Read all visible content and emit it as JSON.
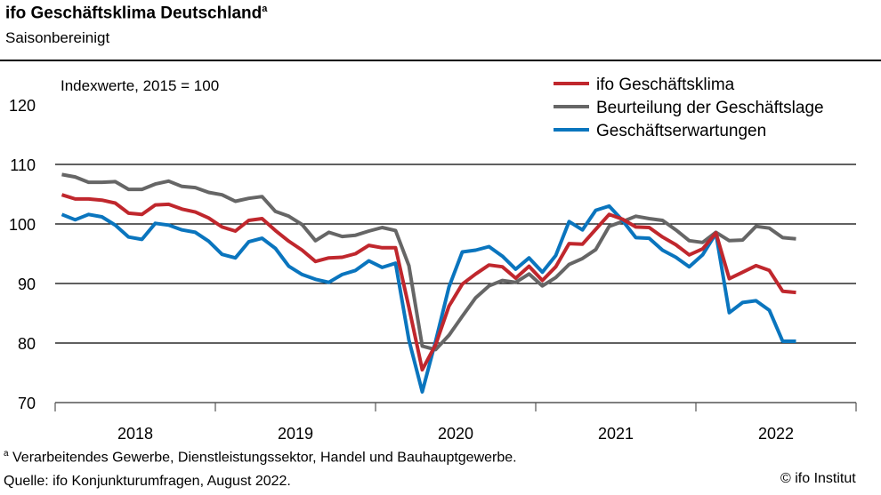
{
  "header": {
    "title": "ifo Geschäftsklima Deutschland",
    "title_sup": "a",
    "subtitle": "Saisonbereinigt"
  },
  "footer": {
    "footnote_mark": "a",
    "footnote": "Verarbeitendes  Gewerbe,  Dienstleistungssektor,  Handel und Bauhauptgewerbe.",
    "source": "Quelle:  ifo Konjunkturumfragen,  August 2022.",
    "copyright": "© ifo Institut"
  },
  "chart_data": {
    "type": "line",
    "annotation": "Indexwerte, 2015 = 100",
    "ylim": [
      70,
      120
    ],
    "yticks": [
      70,
      80,
      90,
      100,
      110,
      120
    ],
    "gridlines": [
      80,
      90,
      100,
      110
    ],
    "x_start": "2018-01",
    "x_end": "2022-08",
    "x_frequency": "monthly",
    "xtick_labels": [
      "2018",
      "2019",
      "2020",
      "2021",
      "2022"
    ],
    "legend_placement": "top-right",
    "series": [
      {
        "name": "ifo Geschäftsklima",
        "color": "#c0272d",
        "values": [
          104.9,
          104.2,
          104.2,
          104.0,
          103.5,
          101.8,
          101.6,
          103.2,
          103.3,
          102.5,
          102.0,
          101.0,
          99.5,
          98.8,
          100.6,
          100.9,
          98.9,
          97.1,
          95.6,
          93.7,
          94.3,
          94.4,
          95.0,
          96.4,
          96.0,
          96.0,
          86.0,
          75.5,
          79.7,
          86.2,
          89.9,
          91.6,
          93.1,
          92.8,
          90.9,
          92.9,
          90.5,
          92.8,
          96.7,
          96.6,
          99.1,
          101.6,
          100.8,
          99.5,
          99.4,
          97.8,
          96.5,
          94.8,
          95.8,
          98.5,
          90.8,
          91.9,
          93.0,
          92.2,
          88.7,
          88.5
        ]
      },
      {
        "name": "Beurteilung der Geschäftslage",
        "color": "#666666",
        "values": [
          108.3,
          107.9,
          107.0,
          107.0,
          107.1,
          105.8,
          105.8,
          106.7,
          107.2,
          106.3,
          106.1,
          105.3,
          104.9,
          103.8,
          104.3,
          104.6,
          102.1,
          101.3,
          99.9,
          97.2,
          98.6,
          97.9,
          98.1,
          98.8,
          99.4,
          98.9,
          93.0,
          79.5,
          78.9,
          81.3,
          84.5,
          87.6,
          89.6,
          90.5,
          90.2,
          91.6,
          89.6,
          91.0,
          93.2,
          94.2,
          95.7,
          99.6,
          100.4,
          101.3,
          100.9,
          100.6,
          99.0,
          97.2,
          96.9,
          98.6,
          97.2,
          97.3,
          99.6,
          99.3,
          97.7,
          97.5
        ]
      },
      {
        "name": "Geschäftserwartungen",
        "color": "#0a75be",
        "values": [
          101.6,
          100.7,
          101.6,
          101.2,
          99.8,
          97.8,
          97.4,
          100.1,
          99.8,
          99.0,
          98.6,
          97.1,
          94.9,
          94.3,
          97.0,
          97.6,
          95.9,
          92.9,
          91.5,
          90.7,
          90.2,
          91.5,
          92.2,
          93.8,
          92.7,
          93.4,
          80.5,
          71.8,
          80.3,
          89.4,
          95.3,
          95.6,
          96.2,
          94.6,
          92.4,
          94.3,
          91.9,
          94.7,
          100.4,
          99.0,
          102.3,
          103.0,
          100.6,
          97.7,
          97.6,
          95.6,
          94.4,
          92.8,
          94.8,
          98.4,
          85.1,
          86.8,
          87.1,
          85.5,
          80.3,
          80.3
        ]
      }
    ]
  }
}
